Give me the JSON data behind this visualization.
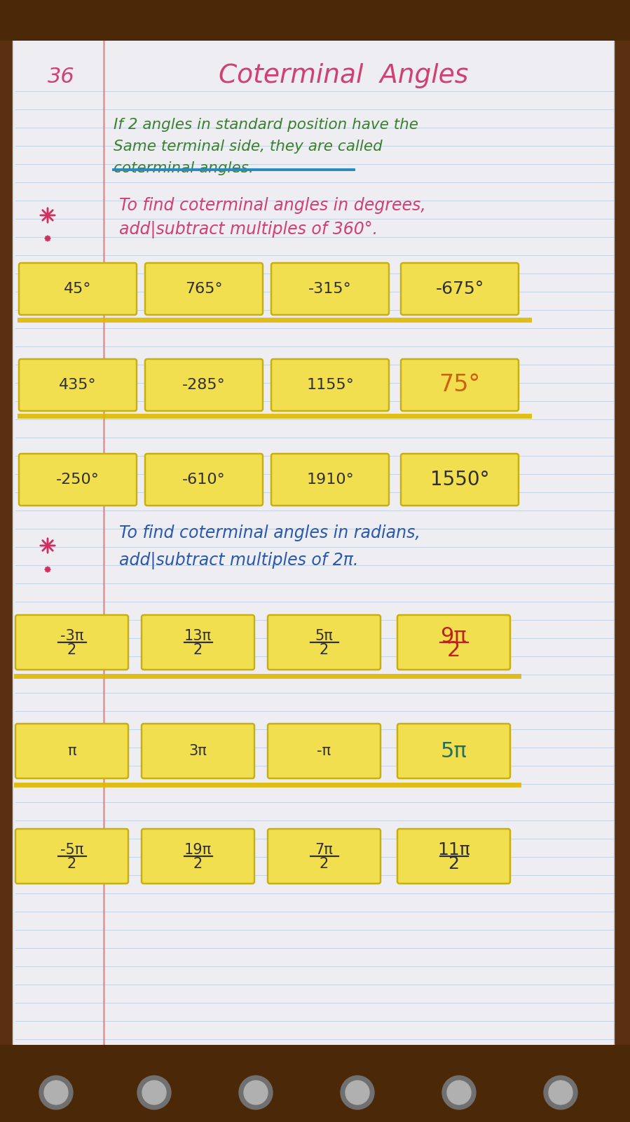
{
  "bg_wood_color": "#5a3010",
  "page_color": "#eeeef2",
  "ruled_line_color": "#a8c0d8",
  "margin_line_color": "#e08080",
  "title": "Coterminal  Angles",
  "page_number": "36",
  "title_color": "#d04070",
  "green_color": "#3a8030",
  "blue_color": "#2858b0",
  "orange_color": "#d06010",
  "red_answer_color": "#c02020",
  "teal_answer_color": "#207060",
  "dark_answer_color": "#303030",
  "sticky_color": "#f2df50",
  "sticky_edge_color": "#c8b010",
  "highlight_line_color": "#e0b800",
  "definition_text_lines": [
    "If 2 angles in standard position have the",
    "Same terminal side, they are called",
    "coterminal angles."
  ],
  "degrees_instruction_lines": [
    "To find coterminal angles in degrees,",
    "add|subtract multiples of 360°."
  ],
  "radians_instruction_lines": [
    "To find coterminal angles in radians,",
    "add|subtract multiples of 2π."
  ],
  "degree_rows": [
    [
      "45°",
      "765°",
      "-315°",
      "-675°"
    ],
    [
      "435°",
      "-285°",
      "1155°",
      "75°"
    ],
    [
      "-250°",
      "-610°",
      "1910°",
      "1550°"
    ]
  ],
  "degree_answer_text_colors": [
    "#303030",
    "#d06010",
    "#303030"
  ],
  "degree_answer_fontsizes": [
    18,
    24,
    20
  ],
  "radian_row1": [
    "-3π/2",
    "13π/2",
    "5π/2",
    "9π/2"
  ],
  "radian_row2": [
    "π",
    "3π",
    "-π",
    "5π"
  ],
  "radian_row3": [
    "-5π/2",
    "19π/2",
    "7π/2",
    "11π/2"
  ],
  "radian_answer_text_colors": [
    "#c02020",
    "#207060",
    "#303030"
  ],
  "radian_answer_fontsizes": [
    22,
    22,
    18
  ],
  "polka_dot_positions": [
    80,
    220,
    365,
    510,
    655,
    800
  ],
  "polka_dot_outer_color": "#707070",
  "polka_dot_inner_color": "#b0b0b0"
}
